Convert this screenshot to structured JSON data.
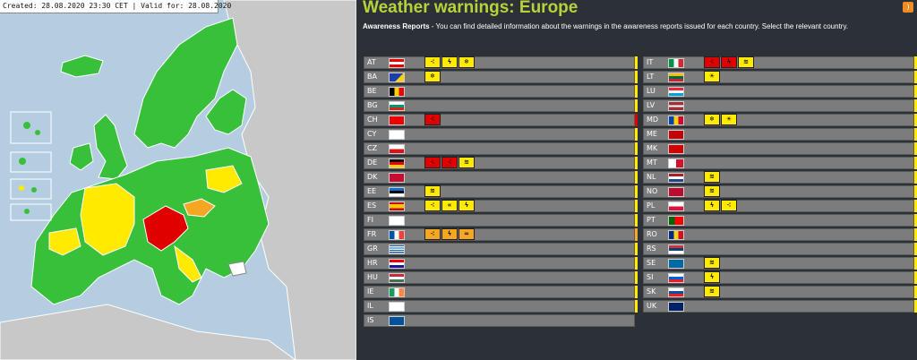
{
  "map": {
    "header": "Created: 28.08.2020 23:30 CET | Valid for: 28.08.2020"
  },
  "colors": {
    "panel_bg": "#2c3137",
    "title_green": "#b7d33b",
    "level_yellow": "#ffea00",
    "level_orange": "#f5a623",
    "level_red": "#e00000",
    "level_green": "#38c03a",
    "row_grey": "#7c7c7c"
  },
  "page": {
    "title": "Weather warnings: Europe",
    "intro_bold": "Awareness Reports",
    "intro_text": " - You can find detailed information about the warnings in the awareness reports issued for each country. Select the relevant country."
  },
  "countries_left": [
    {
      "code": "AT",
      "flag": "austria-flag",
      "level": "yellow",
      "icons": [
        {
          "level": "yellow",
          "type": "rain-icon",
          "g": "⁖"
        },
        {
          "level": "yellow",
          "type": "thunderstorm-icon",
          "g": "ϟ"
        },
        {
          "level": "yellow",
          "type": "snow-ice-icon",
          "g": "❄"
        }
      ]
    },
    {
      "code": "BA",
      "flag": "bosnia-flag",
      "level": "yellow",
      "icons": [
        {
          "level": "yellow",
          "type": "snow-ice-icon",
          "g": "❄"
        }
      ]
    },
    {
      "code": "BE",
      "flag": "belgium-flag",
      "level": "yellow",
      "icons": []
    },
    {
      "code": "BG",
      "flag": "bulgaria-flag",
      "level": "yellow",
      "icons": []
    },
    {
      "code": "CH",
      "flag": "switzerland-flag",
      "level": "red",
      "icons": [
        {
          "level": "red",
          "type": "rain-icon",
          "g": "⁖"
        }
      ]
    },
    {
      "code": "CY",
      "flag": "cyprus-flag",
      "level": "yellow",
      "icons": []
    },
    {
      "code": "CZ",
      "flag": "czech-flag",
      "level": "yellow",
      "icons": []
    },
    {
      "code": "DE",
      "flag": "germany-flag",
      "level": "yellow",
      "icons": [
        {
          "level": "red",
          "type": "rain-icon",
          "g": "⁖"
        },
        {
          "level": "red",
          "type": "rain-icon",
          "g": "⁖"
        },
        {
          "level": "yellow",
          "type": "wind-icon",
          "g": "≋"
        }
      ]
    },
    {
      "code": "DK",
      "flag": "denmark-flag",
      "level": "yellow",
      "icons": []
    },
    {
      "code": "EE",
      "flag": "estonia-flag",
      "level": "yellow",
      "icons": [
        {
          "level": "yellow",
          "type": "wind-icon",
          "g": "≋"
        }
      ]
    },
    {
      "code": "ES",
      "flag": "spain-flag",
      "level": "yellow",
      "icons": [
        {
          "level": "yellow",
          "type": "rain-icon",
          "g": "⁖"
        },
        {
          "level": "yellow",
          "type": "coastal-icon",
          "g": "∝"
        },
        {
          "level": "yellow",
          "type": "thunderstorm-icon",
          "g": "ϟ"
        }
      ]
    },
    {
      "code": "FI",
      "flag": "finland-flag",
      "level": "yellow",
      "icons": []
    },
    {
      "code": "FR",
      "flag": "france-flag",
      "level": "orange",
      "icons": [
        {
          "level": "orange",
          "type": "rain-icon",
          "g": "⁖"
        },
        {
          "level": "orange",
          "type": "thunderstorm-icon",
          "g": "ϟ"
        },
        {
          "level": "orange",
          "type": "flood-icon",
          "g": "≈"
        }
      ]
    },
    {
      "code": "GR",
      "flag": "greece-flag",
      "level": "yellow",
      "icons": []
    },
    {
      "code": "HR",
      "flag": "croatia-flag",
      "level": "yellow",
      "icons": []
    },
    {
      "code": "HU",
      "flag": "hungary-flag",
      "level": "yellow",
      "icons": []
    },
    {
      "code": "IE",
      "flag": "ireland-flag",
      "level": "yellow",
      "icons": []
    },
    {
      "code": "IL",
      "flag": "israel-flag",
      "level": "yellow",
      "icons": []
    },
    {
      "code": "IS",
      "flag": "iceland-flag",
      "level": "none",
      "icons": []
    }
  ],
  "countries_right": [
    {
      "code": "IT",
      "flag": "italy-flag",
      "level": "yellow",
      "icons": [
        {
          "level": "red",
          "type": "rain-icon",
          "g": "⁖"
        },
        {
          "level": "red",
          "type": "thunderstorm-icon",
          "g": "ϟ"
        },
        {
          "level": "yellow",
          "type": "wind-icon",
          "g": "≋"
        }
      ]
    },
    {
      "code": "LT",
      "flag": "lithuania-flag",
      "level": "yellow",
      "icons": [
        {
          "level": "yellow",
          "type": "high-temperature-icon",
          "g": "☀"
        }
      ]
    },
    {
      "code": "LU",
      "flag": "luxembourg-flag",
      "level": "yellow",
      "icons": []
    },
    {
      "code": "LV",
      "flag": "latvia-flag",
      "level": "yellow",
      "icons": []
    },
    {
      "code": "MD",
      "flag": "moldova-flag",
      "level": "yellow",
      "icons": [
        {
          "level": "yellow",
          "type": "snow-ice-icon",
          "g": "❄"
        },
        {
          "level": "yellow",
          "type": "high-temperature-icon",
          "g": "☀"
        }
      ]
    },
    {
      "code": "ME",
      "flag": "montenegro-flag",
      "level": "yellow",
      "icons": []
    },
    {
      "code": "MK",
      "flag": "north-macedonia-flag",
      "level": "yellow",
      "icons": []
    },
    {
      "code": "MT",
      "flag": "malta-flag",
      "level": "yellow",
      "icons": []
    },
    {
      "code": "NL",
      "flag": "netherlands-flag",
      "level": "yellow",
      "icons": [
        {
          "level": "yellow",
          "type": "wind-icon",
          "g": "≋"
        }
      ]
    },
    {
      "code": "NO",
      "flag": "norway-flag",
      "level": "yellow",
      "icons": [
        {
          "level": "yellow",
          "type": "wind-icon",
          "g": "≋"
        }
      ]
    },
    {
      "code": "PL",
      "flag": "poland-flag",
      "level": "yellow",
      "icons": [
        {
          "level": "yellow",
          "type": "thunderstorm-icon",
          "g": "ϟ"
        },
        {
          "level": "yellow",
          "type": "rain-icon",
          "g": "⁖"
        }
      ]
    },
    {
      "code": "PT",
      "flag": "portugal-flag",
      "level": "yellow",
      "icons": []
    },
    {
      "code": "RO",
      "flag": "romania-flag",
      "level": "yellow",
      "icons": []
    },
    {
      "code": "RS",
      "flag": "serbia-flag",
      "level": "yellow",
      "icons": []
    },
    {
      "code": "SE",
      "flag": "sweden-flag",
      "level": "yellow",
      "icons": [
        {
          "level": "yellow",
          "type": "wind-icon",
          "g": "≋"
        }
      ]
    },
    {
      "code": "SI",
      "flag": "slovenia-flag",
      "level": "yellow",
      "icons": [
        {
          "level": "yellow",
          "type": "thunderstorm-icon",
          "g": "ϟ"
        }
      ]
    },
    {
      "code": "SK",
      "flag": "slovakia-flag",
      "level": "yellow",
      "icons": [
        {
          "level": "yellow",
          "type": "wind-icon",
          "g": "≋"
        }
      ]
    },
    {
      "code": "UK",
      "flag": "uk-flag",
      "level": "yellow",
      "icons": []
    }
  ]
}
